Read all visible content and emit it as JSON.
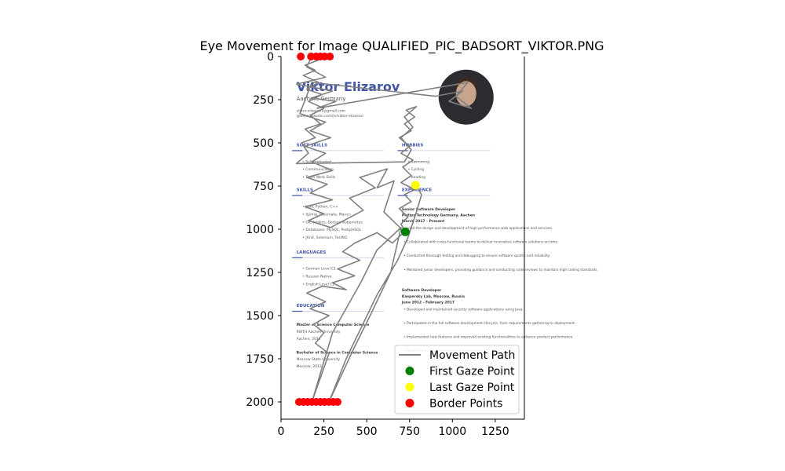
{
  "chart_data": {
    "type": "scatter",
    "title": "Eye Movement for Image QUALIFIED_PIC_BADSORT_VIKTOR.PNG",
    "xlabel": "",
    "ylabel": "",
    "xlim": [
      0,
      1420
    ],
    "ylim": [
      2100,
      0
    ],
    "x_ticks": [
      0,
      250,
      500,
      750,
      1000,
      1250
    ],
    "y_ticks": [
      0,
      250,
      500,
      750,
      1000,
      1250,
      1500,
      1750,
      2000
    ],
    "legend": {
      "position": "lower-right",
      "entries": [
        {
          "label": "Movement Path",
          "color": "#808080",
          "marker": "line"
        },
        {
          "label": "First Gaze Point",
          "color": "#008000",
          "marker": "circle"
        },
        {
          "label": "Last Gaze Point",
          "color": "#ffff00",
          "marker": "circle"
        },
        {
          "label": "Border Points",
          "color": "#ff0000",
          "marker": "circle"
        }
      ]
    },
    "first_gaze_point": {
      "x": 725,
      "y": 1015
    },
    "last_gaze_point": {
      "x": 785,
      "y": 745
    },
    "border_points": [
      {
        "x": 115,
        "y": 0
      },
      {
        "x": 175,
        "y": 0
      },
      {
        "x": 205,
        "y": 0
      },
      {
        "x": 230,
        "y": 0
      },
      {
        "x": 255,
        "y": 0
      },
      {
        "x": 285,
        "y": 0
      },
      {
        "x": 105,
        "y": 2000
      },
      {
        "x": 130,
        "y": 2000
      },
      {
        "x": 155,
        "y": 2000
      },
      {
        "x": 180,
        "y": 2000
      },
      {
        "x": 205,
        "y": 2000
      },
      {
        "x": 230,
        "y": 2000
      },
      {
        "x": 255,
        "y": 2000
      },
      {
        "x": 280,
        "y": 2000
      },
      {
        "x": 305,
        "y": 2000
      },
      {
        "x": 330,
        "y": 2000
      }
    ],
    "movement_path": [
      [
        725,
        1015
      ],
      [
        700,
        970
      ],
      [
        740,
        930
      ],
      [
        690,
        880
      ],
      [
        760,
        840
      ],
      [
        720,
        800
      ],
      [
        780,
        770
      ],
      [
        700,
        730
      ],
      [
        760,
        690
      ],
      [
        710,
        640
      ],
      [
        770,
        600
      ],
      [
        700,
        560
      ],
      [
        750,
        520
      ],
      [
        690,
        470
      ],
      [
        760,
        430
      ],
      [
        720,
        390
      ],
      [
        780,
        350
      ],
      [
        730,
        310
      ],
      [
        790,
        290
      ],
      [
        720,
        350
      ],
      [
        770,
        410
      ],
      [
        700,
        470
      ],
      [
        760,
        540
      ],
      [
        720,
        610
      ],
      [
        90,
        620
      ],
      [
        160,
        560
      ],
      [
        120,
        500
      ],
      [
        200,
        470
      ],
      [
        140,
        420
      ],
      [
        230,
        390
      ],
      [
        170,
        340
      ],
      [
        250,
        300
      ],
      [
        160,
        260
      ],
      [
        240,
        220
      ],
      [
        150,
        190
      ],
      [
        220,
        150
      ],
      [
        130,
        110
      ],
      [
        200,
        80
      ],
      [
        140,
        50
      ],
      [
        220,
        20
      ],
      [
        180,
        0
      ],
      [
        150,
        60
      ],
      [
        260,
        120
      ],
      [
        90,
        160
      ],
      [
        300,
        200
      ],
      [
        180,
        240
      ],
      [
        320,
        260
      ],
      [
        210,
        300
      ],
      [
        1090,
        150
      ],
      [
        1020,
        230
      ],
      [
        1110,
        300
      ],
      [
        980,
        260
      ],
      [
        1060,
        200
      ],
      [
        900,
        230
      ],
      [
        180,
        150
      ],
      [
        110,
        330
      ],
      [
        260,
        380
      ],
      [
        170,
        430
      ],
      [
        290,
        470
      ],
      [
        140,
        520
      ],
      [
        260,
        560
      ],
      [
        180,
        610
      ],
      [
        300,
        660
      ],
      [
        150,
        700
      ],
      [
        270,
        740
      ],
      [
        170,
        790
      ],
      [
        300,
        830
      ],
      [
        140,
        870
      ],
      [
        250,
        910
      ],
      [
        160,
        950
      ],
      [
        290,
        990
      ],
      [
        480,
        890
      ],
      [
        400,
        820
      ],
      [
        550,
        760
      ],
      [
        460,
        700
      ],
      [
        620,
        650
      ],
      [
        560,
        760
      ],
      [
        660,
        720
      ],
      [
        600,
        900
      ],
      [
        720,
        1015
      ],
      [
        650,
        1080
      ],
      [
        560,
        1020
      ],
      [
        430,
        1080
      ],
      [
        360,
        1130
      ],
      [
        460,
        1180
      ],
      [
        330,
        1230
      ],
      [
        430,
        1270
      ],
      [
        300,
        1310
      ],
      [
        380,
        1350
      ],
      [
        240,
        1330
      ],
      [
        150,
        1370
      ],
      [
        260,
        1420
      ],
      [
        170,
        1460
      ],
      [
        280,
        1500
      ],
      [
        190,
        1550
      ],
      [
        250,
        1600
      ],
      [
        200,
        1660
      ],
      [
        280,
        1720
      ],
      [
        180,
        2000
      ],
      [
        300,
        1600
      ],
      [
        470,
        1300
      ],
      [
        560,
        1120
      ],
      [
        700,
        990
      ],
      [
        640,
        1250
      ],
      [
        520,
        1500
      ],
      [
        420,
        1700
      ],
      [
        280,
        2000
      ],
      [
        380,
        1750
      ],
      [
        560,
        1380
      ],
      [
        680,
        1180
      ],
      [
        740,
        1050
      ],
      [
        790,
        900
      ],
      [
        820,
        800
      ],
      [
        785,
        745
      ]
    ],
    "background_image": {
      "name": "Viktor Elizarov",
      "location": "Aachen, Germany",
      "contact": [
        "viktor.elizarov1@gmail.com",
        "@www.linkedin.com/in/viktor-elizarov/"
      ],
      "sections": [
        {
          "title": "SOFT SKILLS",
          "items": [
            "Self-motivated",
            "Communication",
            "Team Work Skills"
          ]
        },
        {
          "title": "SKILLS",
          "items": [
            "Java, Python, C++",
            "Spring, Hibernate, Maven",
            "Git, Jenkins, Docker, Kubernetes",
            "Databases: MySQL, PostgreSQL",
            "JUnit, Selenium, TestNG"
          ]
        },
        {
          "title": "LANGUAGES",
          "items": [
            "German Level C1",
            "Russian Native",
            "English Level C2"
          ]
        },
        {
          "title": "EDUCATION",
          "items": []
        },
        {
          "title": "HOBBIES",
          "items": [
            "Swimming",
            "Cycling",
            "Reading"
          ]
        },
        {
          "title": "EXPERIENCE",
          "items": []
        }
      ],
      "education": [
        {
          "degree": "Master of Science Computer Science",
          "place": "RWTH Aachen University",
          "detail": "Aachen, 2014"
        },
        {
          "degree": "Bachelor of Science in Computer Science",
          "place": "Moscow State University",
          "detail": "Moscow, 2012"
        }
      ],
      "jobs": [
        {
          "role": "Senior Software Developer",
          "company": "Philips Technology Germany, Aachen",
          "dates": "March 2017 - Present",
          "bullets": [
            "Lead the design and development of high-performance web applications and services.",
            "Collaborated with cross-functional teams to deliver innovative software solutions on time.",
            "Conducted thorough testing and debugging to ensure software quality and reliability.",
            "Mentored junior developers, providing guidance and conducting code reviews to maintain high coding standards."
          ]
        },
        {
          "role": "Software Developer",
          "company": "Kaspersky Lab, Moscow, Russia",
          "dates": "June 2012 - February 2017",
          "bullets": [
            "Developed and maintained security software applications using Java.",
            "Participated in the full software development lifecycle, from requirements gathering to deployment.",
            "Implemented new features and improved existing functionalities to enhance product performance.",
            "Worked in an agile development environment"
          ]
        }
      ]
    }
  }
}
